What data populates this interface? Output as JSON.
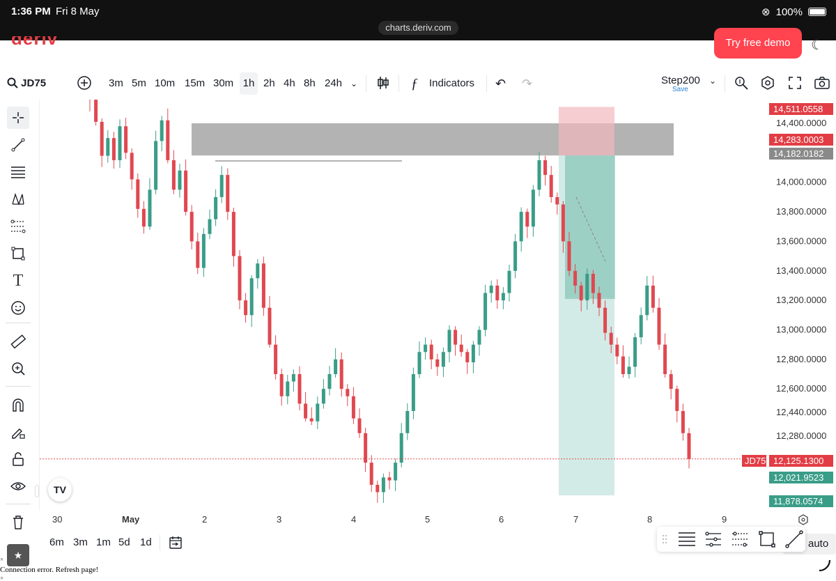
{
  "status_bar": {
    "time": "1:36 PM",
    "date": "Fri 8 May",
    "battery": "100%",
    "url": "charts.deriv.com"
  },
  "header": {
    "logo": "deriv",
    "try_button": "Try free demo"
  },
  "toolbar": {
    "symbol": "JD75",
    "intervals": [
      "3m",
      "5m",
      "10m",
      "15m",
      "30m",
      "1h",
      "2h",
      "4h",
      "8h",
      "24h"
    ],
    "selected_interval": "1h",
    "indicators_label": "Indicators",
    "layout_name": "Step200",
    "layout_save": "Save"
  },
  "bottom": {
    "ranges": [
      "6m",
      "3m",
      "1m",
      "5d",
      "1d"
    ],
    "partial_label": "auto",
    "error": "Connection error. Refresh page!",
    "x1": "×",
    "x2": "×",
    "x3": "×"
  },
  "chart_data": {
    "type": "candlestick",
    "symbol": "JD75",
    "xticks": [
      "30",
      "May",
      "2",
      "3",
      "4",
      "5",
      "6",
      "7",
      "8",
      "9"
    ],
    "yticks": [
      14400,
      14000,
      13800,
      13600,
      13400,
      13200,
      13000,
      12800,
      12600,
      12440,
      12280
    ],
    "ytick_labels": [
      "14,400.0000",
      "14,000.0000",
      "13,800.0000",
      "13,600.0000",
      "13,400.0000",
      "13,200.0000",
      "13,000.0000",
      "12,800.0000",
      "12,600.0000",
      "12,440.0000",
      "12,280.0000"
    ],
    "price_flags": [
      {
        "label": "14,511.0558",
        "color": "#e23d45"
      },
      {
        "label": "14,283.0003",
        "color": "#e23d45"
      },
      {
        "label": "14,182.0182",
        "color": "#8a8a8a"
      },
      {
        "label": "12,125.1300",
        "color": "#e23d45",
        "tag": "JD75"
      },
      {
        "label": "12,021.9523",
        "color": "#3a9d88"
      },
      {
        "label": "11,878.0574",
        "color": "#3a9d88"
      }
    ],
    "ylim": [
      11860,
      14560
    ],
    "zone": {
      "from": 14182.0182,
      "to": 14400
    },
    "position": {
      "entry": 14182.0182,
      "stop": 14511.0558,
      "target": 11878.0574
    },
    "colors": {
      "up": "#3a9d88",
      "down": "#e04850",
      "zone": "#9a9a9a"
    },
    "closes": [
      14560,
      14410,
      14180,
      14300,
      14150,
      14380,
      14200,
      14020,
      13820,
      13700,
      13950,
      14280,
      14420,
      14150,
      13950,
      14080,
      13800,
      13600,
      13420,
      13650,
      13750,
      13900,
      14050,
      13800,
      13500,
      13200,
      13100,
      13350,
      13450,
      13150,
      12900,
      12700,
      12550,
      12650,
      12700,
      12500,
      12400,
      12380,
      12500,
      12600,
      12700,
      12800,
      12600,
      12550,
      12400,
      12300,
      12100,
      11950,
      11900,
      12000,
      11980,
      12100,
      12300,
      12450,
      12700,
      12850,
      12900,
      12800,
      12750,
      12850,
      13000,
      12900,
      12850,
      12780,
      12900,
      13000,
      13250,
      13300,
      13200,
      13250,
      13400,
      13600,
      13800,
      13700,
      13950,
      14150,
      14050,
      13900,
      13850,
      13600,
      13400,
      13300,
      13200,
      13380,
      13250,
      13150,
      12980,
      12900,
      12820,
      12700,
      12750,
      12950,
      13100,
      13300,
      13150,
      12900,
      12700,
      12600,
      12450,
      12300,
      12125
    ]
  }
}
